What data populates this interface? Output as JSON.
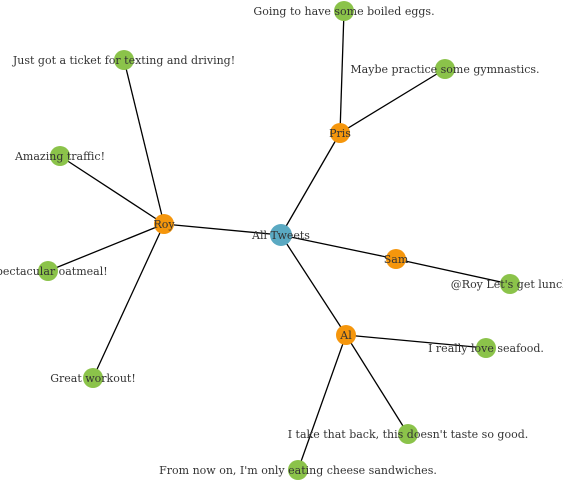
{
  "graph": {
    "colors": {
      "root": "#5aa9c2",
      "user": "#f5960c",
      "tweet": "#8bc34a",
      "link": "#000000",
      "label": "#333333"
    },
    "nodes": [
      {
        "id": "root",
        "label": "All Tweets",
        "kind": "root"
      },
      {
        "id": "pris",
        "label": "Pris",
        "kind": "user"
      },
      {
        "id": "roy",
        "label": "Roy",
        "kind": "user"
      },
      {
        "id": "sam",
        "label": "Sam",
        "kind": "user"
      },
      {
        "id": "al",
        "label": "Al",
        "kind": "user"
      },
      {
        "id": "t1",
        "label": "Going to have some boiled eggs.",
        "kind": "tweet"
      },
      {
        "id": "t2",
        "label": "Maybe practice some gymnastics.",
        "kind": "tweet"
      },
      {
        "id": "t3",
        "label": "Just got a ticket for texting and driving!",
        "kind": "tweet"
      },
      {
        "id": "t4",
        "label": "Amazing traffic!",
        "kind": "tweet"
      },
      {
        "id": "t5",
        "label": "Spectacular oatmeal!",
        "kind": "tweet"
      },
      {
        "id": "t6",
        "label": "Great workout!",
        "kind": "tweet"
      },
      {
        "id": "t7",
        "label": "@Roy Let's get lunch",
        "kind": "tweet"
      },
      {
        "id": "t8",
        "label": "I really love seafood.",
        "kind": "tweet"
      },
      {
        "id": "t9",
        "label": "I take that back, this doesn't taste so good.",
        "kind": "tweet"
      },
      {
        "id": "t10",
        "label": "From now on, I'm only eating cheese sandwiches.",
        "kind": "tweet"
      }
    ],
    "links": [
      [
        "root",
        "pris"
      ],
      [
        "root",
        "roy"
      ],
      [
        "root",
        "sam"
      ],
      [
        "root",
        "al"
      ],
      [
        "pris",
        "t1"
      ],
      [
        "pris",
        "t2"
      ],
      [
        "roy",
        "t3"
      ],
      [
        "roy",
        "t4"
      ],
      [
        "roy",
        "t5"
      ],
      [
        "roy",
        "t6"
      ],
      [
        "sam",
        "t7"
      ],
      [
        "al",
        "t8"
      ],
      [
        "al",
        "t9"
      ],
      [
        "al",
        "t10"
      ]
    ]
  }
}
